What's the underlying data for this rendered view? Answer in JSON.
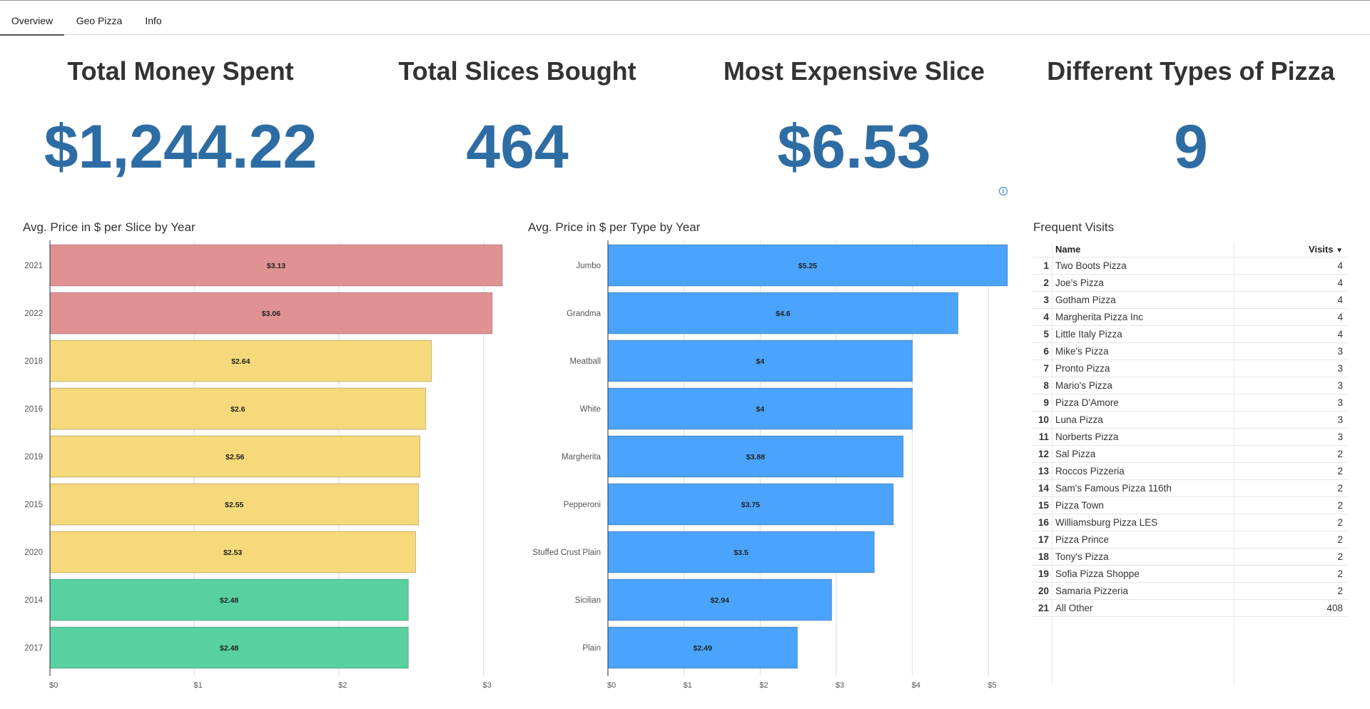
{
  "tabs": [
    {
      "label": "Overview",
      "active": true
    },
    {
      "label": "Geo Pizza",
      "active": false
    },
    {
      "label": "Info",
      "active": false
    }
  ],
  "kpis": [
    {
      "title": "Total Money Spent",
      "value": "$1,244.22"
    },
    {
      "title": "Total Slices Bought",
      "value": "464"
    },
    {
      "title": "Most Expensive Slice",
      "value": "$6.53"
    },
    {
      "title": "Different Types of Pizza",
      "value": "9"
    }
  ],
  "info_icon": {
    "glyph": "i"
  },
  "colors": {
    "accent": "#2e6da4",
    "red": "#e09192",
    "yellow": "#f5d97a",
    "green": "#58d0a0",
    "blue": "#4aa3fc"
  },
  "chart_data": [
    {
      "type": "bar",
      "orientation": "horizontal",
      "title": "Avg. Price in $ per Slice by Year",
      "categories": [
        "2021",
        "2022",
        "2018",
        "2016",
        "2019",
        "2015",
        "2020",
        "2014",
        "2017"
      ],
      "values": [
        3.13,
        3.06,
        2.64,
        2.6,
        2.56,
        2.55,
        2.53,
        2.48,
        2.48
      ],
      "labels": [
        "$3.13",
        "$3.06",
        "$2.64",
        "$2.6",
        "$2.56",
        "$2.55",
        "$2.53",
        "$2.48",
        "$2.48"
      ],
      "bar_colors": [
        "#e09192",
        "#e09192",
        "#f5d97a",
        "#f5d97a",
        "#f5d97a",
        "#f5d97a",
        "#f5d97a",
        "#58d0a0",
        "#58d0a0"
      ],
      "xlim": [
        0,
        3.13
      ],
      "xticks": [
        0,
        1,
        2,
        3
      ],
      "xtick_labels": [
        "$0",
        "$1",
        "$2",
        "$3"
      ],
      "grid": true
    },
    {
      "type": "bar",
      "orientation": "horizontal",
      "title": "Avg. Price in $ per Type by Year",
      "categories": [
        "Jumbo",
        "Grandma",
        "Meatball",
        "White",
        "Margherita",
        "Pepperoni",
        "Stuffed Crust Plain",
        "Sicilian",
        "Plain"
      ],
      "values": [
        5.25,
        4.6,
        4,
        4,
        3.88,
        3.75,
        3.5,
        2.94,
        2.49
      ],
      "labels": [
        "$5.25",
        "$4.6",
        "$4",
        "$4",
        "$3.88",
        "$3.75",
        "$3.5",
        "$2.94",
        "$2.49"
      ],
      "bar_colors": [
        "#4aa3fc",
        "#4aa3fc",
        "#4aa3fc",
        "#4aa3fc",
        "#4aa3fc",
        "#4aa3fc",
        "#4aa3fc",
        "#4aa3fc",
        "#4aa3fc"
      ],
      "xlim": [
        0,
        5.25
      ],
      "xticks": [
        0,
        1,
        2,
        3,
        4,
        5
      ],
      "xtick_labels": [
        "$0",
        "$1",
        "$2",
        "$3",
        "$4",
        "$5"
      ],
      "grid": true
    }
  ],
  "frequent": {
    "title": "Frequent Visits",
    "columns": {
      "name": "Name",
      "visits": "Visits",
      "sort_glyph": "▼"
    },
    "rows": [
      {
        "idx": "1",
        "name": "Two Boots Pizza",
        "visits": "4"
      },
      {
        "idx": "2",
        "name": "Joe's Pizza",
        "visits": "4"
      },
      {
        "idx": "3",
        "name": "Gotham Pizza",
        "visits": "4"
      },
      {
        "idx": "4",
        "name": "Margherita Pizza Inc",
        "visits": "4"
      },
      {
        "idx": "5",
        "name": "Little Italy Pizza",
        "visits": "4"
      },
      {
        "idx": "6",
        "name": "Mike's Pizza",
        "visits": "3"
      },
      {
        "idx": "7",
        "name": "Pronto Pizza",
        "visits": "3"
      },
      {
        "idx": "8",
        "name": "Mario's Pizza",
        "visits": "3"
      },
      {
        "idx": "9",
        "name": "Pizza D'Amore",
        "visits": "3"
      },
      {
        "idx": "10",
        "name": "Luna Pizza",
        "visits": "3"
      },
      {
        "idx": "11",
        "name": "Norberts Pizza",
        "visits": "3"
      },
      {
        "idx": "12",
        "name": "Sal Pizza",
        "visits": "2"
      },
      {
        "idx": "13",
        "name": "Roccos Pizzeria",
        "visits": "2"
      },
      {
        "idx": "14",
        "name": "Sam's Famous Pizza 116th",
        "visits": "2"
      },
      {
        "idx": "15",
        "name": "Pizza Town",
        "visits": "2"
      },
      {
        "idx": "16",
        "name": "Williamsburg Pizza LES",
        "visits": "2"
      },
      {
        "idx": "17",
        "name": "Pizza Prince",
        "visits": "2"
      },
      {
        "idx": "18",
        "name": "Tony's Pizza",
        "visits": "2"
      },
      {
        "idx": "19",
        "name": "Sofia Pizza Shoppe",
        "visits": "2"
      },
      {
        "idx": "20",
        "name": "Samaria Pizzeria",
        "visits": "2"
      },
      {
        "idx": "21",
        "name": "All Other",
        "visits": "408"
      }
    ]
  }
}
